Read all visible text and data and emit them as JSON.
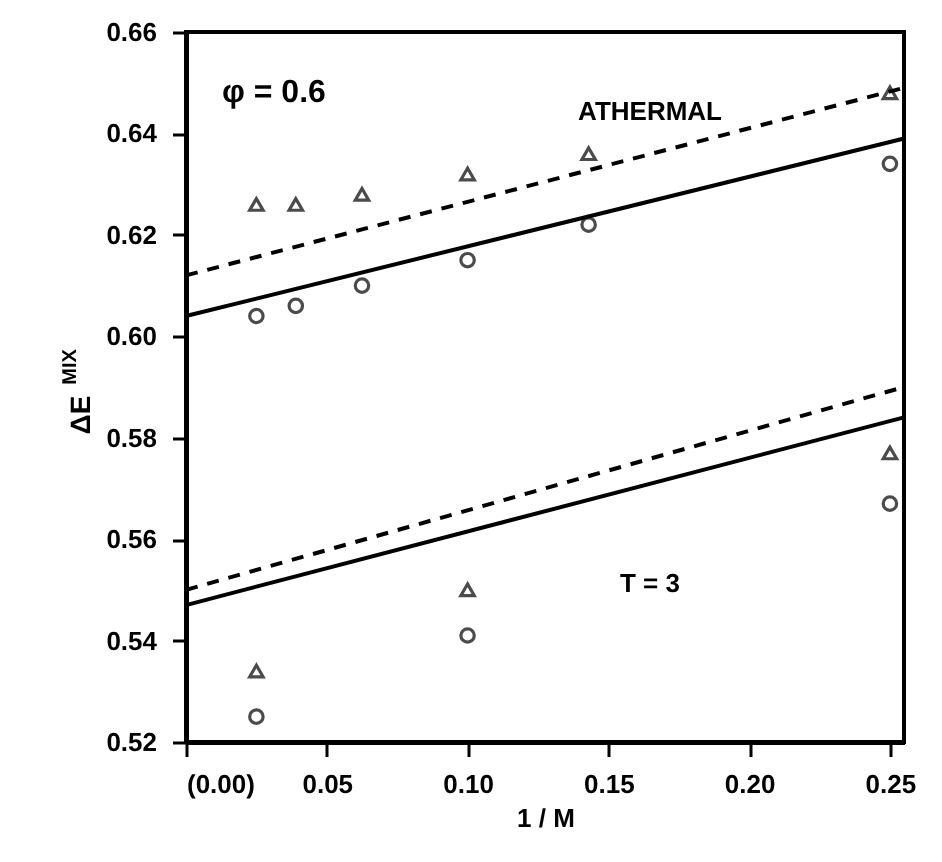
{
  "chart_data": {
    "type": "scatter",
    "xlabel": "1 / M",
    "ylabel": "ΔE$^{MIX}$",
    "x": [
      0.025,
      0.039,
      0.0625,
      0.1,
      0.143,
      0.25
    ],
    "series": [
      {
        "marker": "triangle",
        "color": "#000000",
        "values": [
          0.626,
          0.626,
          0.628,
          0.632,
          0.636,
          0.648
        ]
      },
      {
        "marker": "circle",
        "color": "#000000",
        "values": [
          0.604,
          0.606,
          0.61,
          0.615,
          0.622,
          0.634
        ]
      },
      {
        "marker": "triangle",
        "color": "#000000",
        "x": [
          0.025,
          0.1,
          0.25
        ],
        "values": [
          0.534,
          0.55,
          0.577
        ]
      },
      {
        "marker": "circle",
        "color": "#000000",
        "x": [
          0.025,
          0.1,
          0.25
        ],
        "values": [
          0.525,
          0.541,
          0.567
        ]
      },
      {
        "type": "line",
        "line_style": "solid",
        "color": "#000000",
        "x": [
          0,
          0.255
        ],
        "values": [
          0.604,
          0.639
        ]
      },
      {
        "type": "line",
        "line_style": "dashed",
        "color": "#000000",
        "x": [
          0,
          0.255
        ],
        "values": [
          0.612,
          0.649
        ]
      },
      {
        "type": "line",
        "line_style": "solid",
        "color": "#000000",
        "x": [
          0,
          0.255
        ],
        "values": [
          0.547,
          0.584
        ]
      },
      {
        "type": "line",
        "line_style": "dashed",
        "color": "#000000",
        "x": [
          0,
          0.255
        ],
        "values": [
          0.55,
          0.59
        ]
      }
    ],
    "xlim": [
      0,
      0.255
    ],
    "ylim": [
      0.52,
      0.66
    ],
    "xticks": [
      {
        "value": 0,
        "label": "(0.00)"
      },
      0.05,
      {
        "value": 0.1,
        "label": "0.10"
      },
      0.15,
      {
        "value": 0.2,
        "label": "0.20"
      },
      0.25
    ],
    "yticks": [
      0.52,
      0.54,
      0.56,
      0.58,
      {
        "value": 0.6,
        "label": "0.60"
      },
      0.62,
      0.64,
      0.66
    ],
    "annotations": [
      "φ = 0.6",
      "ATHERMAL",
      "T = 3"
    ],
    "grid": false
  }
}
